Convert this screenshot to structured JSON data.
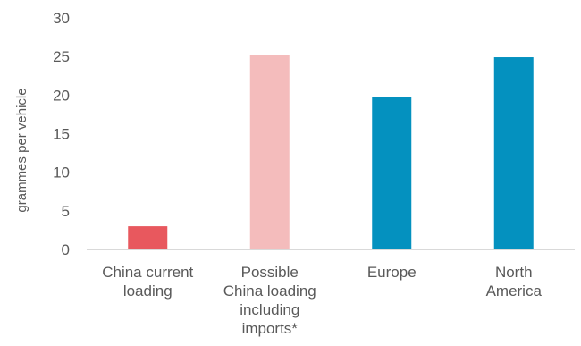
{
  "chart_data": {
    "type": "bar",
    "title": "",
    "xlabel": "",
    "ylabel": "grammes per vehicle",
    "ylim": [
      0,
      30
    ],
    "yticks": [
      0,
      5,
      10,
      15,
      20,
      25,
      30
    ],
    "grid": false,
    "legend": "none",
    "categories": [
      [
        "China current",
        "loading"
      ],
      [
        "Possible",
        "China loading",
        "including",
        "imports*"
      ],
      [
        "Europe"
      ],
      [
        "North",
        "America"
      ]
    ],
    "values": [
      3,
      25.2,
      19.8,
      24.9
    ],
    "colors": [
      "#e8585e",
      "#f4bcbc",
      "#0491bf",
      "#0491bf"
    ]
  }
}
